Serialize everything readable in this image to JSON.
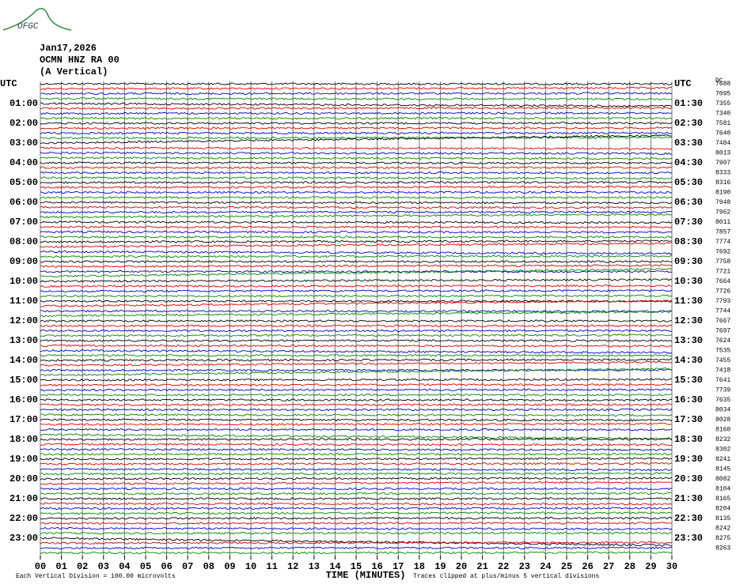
{
  "header": {
    "logo": "OFGC",
    "date": "Jan17,2026",
    "station": "OCMN HNZ RA 00",
    "component": "(A Vertical)",
    "corner": "DC"
  },
  "left_labels": [
    "UTC",
    "01:00",
    "02:00",
    "03:00",
    "04:00",
    "05:00",
    "06:00",
    "07:00",
    "08:00",
    "09:00",
    "10:00",
    "11:00",
    "12:00",
    "13:00",
    "14:00",
    "15:00",
    "16:00",
    "17:00",
    "18:00",
    "19:00",
    "20:00",
    "21:00",
    "22:00",
    "23:00"
  ],
  "right_labels": [
    "UTC",
    "01:30",
    "02:30",
    "03:30",
    "04:30",
    "05:30",
    "06:30",
    "07:30",
    "08:30",
    "09:30",
    "10:30",
    "11:30",
    "12:30",
    "13:30",
    "14:30",
    "15:30",
    "16:30",
    "17:30",
    "18:30",
    "19:30",
    "20:30",
    "21:30",
    "22:30",
    "23:30"
  ],
  "right_values": [
    "7688",
    "7095",
    "7355",
    "7340",
    "7581",
    "7640",
    "7484",
    "8013",
    "7907",
    "8333",
    "8316",
    "8190",
    "7948",
    "7962",
    "8011",
    "7857",
    "7774",
    "7692",
    "7758",
    "7721",
    "7664",
    "7726",
    "7793",
    "7744",
    "7667",
    "7697",
    "7624",
    "7535",
    "7455",
    "7418",
    "7641",
    "7739",
    "7635",
    "8034",
    "8028",
    "8160",
    "8232",
    "8302",
    "8241",
    "8145",
    "8082",
    "8104",
    "8165",
    "8204",
    "8135",
    "8242",
    "8275",
    "8263"
  ],
  "x_ticks": [
    "00",
    "01",
    "02",
    "03",
    "04",
    "05",
    "06",
    "07",
    "08",
    "09",
    "10",
    "11",
    "12",
    "13",
    "14",
    "15",
    "16",
    "17",
    "18",
    "19",
    "20",
    "21",
    "22",
    "23",
    "24",
    "25",
    "26",
    "27",
    "28",
    "29",
    "30"
  ],
  "footer": {
    "scale": "Each Vertical Division =  100.00 microvolts",
    "axis": "TIME (MINUTES)",
    "note": "Traces clipped at plus/minus 5 vertical divisions"
  }
}
